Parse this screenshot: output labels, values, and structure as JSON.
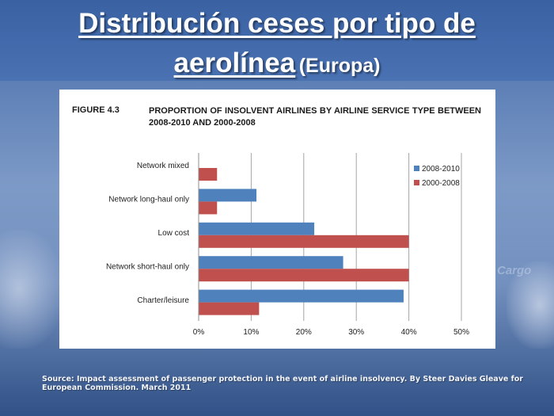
{
  "slide": {
    "title_main_line1": "Distribución ceses por tipo de",
    "title_main_line2": "aerolínea",
    "title_region": "(Europa)",
    "source": "Source: Impact assessment of passenger protection in the event of airline insolvency. By Steer Davies Gleave for European Commission. March 2011",
    "background_text": "Cargo"
  },
  "figure": {
    "label": "FIGURE 4.3",
    "title": "PROPORTION OF INSOLVENT AIRLINES BY AIRLINE SERVICE TYPE BETWEEN 2008-2010 AND 2000-2008"
  },
  "colors": {
    "series_2008_2010": "#4f81bd",
    "series_2000_2008": "#c0504d",
    "grid": "#a6a6a6"
  },
  "chart_data": {
    "type": "bar",
    "orientation": "horizontal",
    "title": "PROPORTION OF INSOLVENT AIRLINES BY AIRLINE SERVICE TYPE BETWEEN 2008-2010 AND 2000-2008",
    "categories": [
      "Network mixed",
      "Network long-haul only",
      "Low cost",
      "Network short-haul only",
      "Charter/leisure"
    ],
    "series": [
      {
        "name": "2008-2010",
        "values": [
          0,
          11,
          22,
          27.5,
          39
        ]
      },
      {
        "name": "2000-2008",
        "values": [
          3.5,
          3.5,
          40,
          40,
          11.5
        ]
      }
    ],
    "xlim": [
      0,
      50
    ],
    "xticks": [
      "0%",
      "10%",
      "20%",
      "30%",
      "40%",
      "50%"
    ],
    "grid": true,
    "legend_position": "top-right"
  }
}
